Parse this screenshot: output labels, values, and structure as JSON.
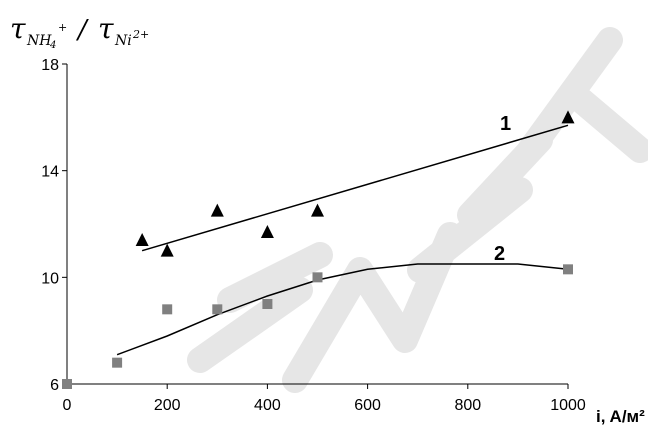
{
  "chart_data": {
    "type": "scatter",
    "title": "",
    "ylabel": {
      "tau": "τ",
      "sub1": "NH",
      "sub1_index": "4",
      "sub1_charge": "+",
      "slash": "/",
      "sub2": "Ni",
      "sub2_charge": "2+"
    },
    "xlabel": "i, A/м²",
    "xlim": [
      0,
      1000
    ],
    "ylim": [
      6,
      18
    ],
    "x_ticks": [
      "0",
      "200",
      "400",
      "600",
      "800",
      "1000"
    ],
    "y_ticks": [
      "6",
      "10",
      "14",
      "18"
    ],
    "grid": false,
    "series": [
      {
        "name": "1",
        "marker": "triangle",
        "color": "#000000",
        "points": [
          [
            150,
            11.4
          ],
          [
            200,
            11.0
          ],
          [
            300,
            12.5
          ],
          [
            400,
            11.7
          ],
          [
            500,
            12.5
          ],
          [
            1000,
            16.0
          ]
        ],
        "trend": "linear",
        "trend_range": [
          150,
          1000
        ],
        "trend_points": [
          [
            150,
            11.0
          ],
          [
            1000,
            15.7
          ]
        ]
      },
      {
        "name": "2",
        "marker": "square",
        "color": "#808080",
        "points": [
          [
            0,
            6.0
          ],
          [
            100,
            6.8
          ],
          [
            200,
            8.8
          ],
          [
            300,
            8.8
          ],
          [
            400,
            9.0
          ],
          [
            500,
            10.0
          ],
          [
            1000,
            10.3
          ]
        ],
        "trend": "polynomial",
        "trend_range": [
          100,
          1000
        ],
        "trend_points": [
          [
            100,
            7.1
          ],
          [
            200,
            7.8
          ],
          [
            300,
            8.6
          ],
          [
            400,
            9.3
          ],
          [
            500,
            9.9
          ],
          [
            600,
            10.3
          ],
          [
            700,
            10.5
          ],
          [
            800,
            10.5
          ],
          [
            900,
            10.5
          ],
          [
            1000,
            10.3
          ]
        ]
      }
    ]
  },
  "watermark": {
    "text": "Копия",
    "color": "#e6e6e6"
  }
}
